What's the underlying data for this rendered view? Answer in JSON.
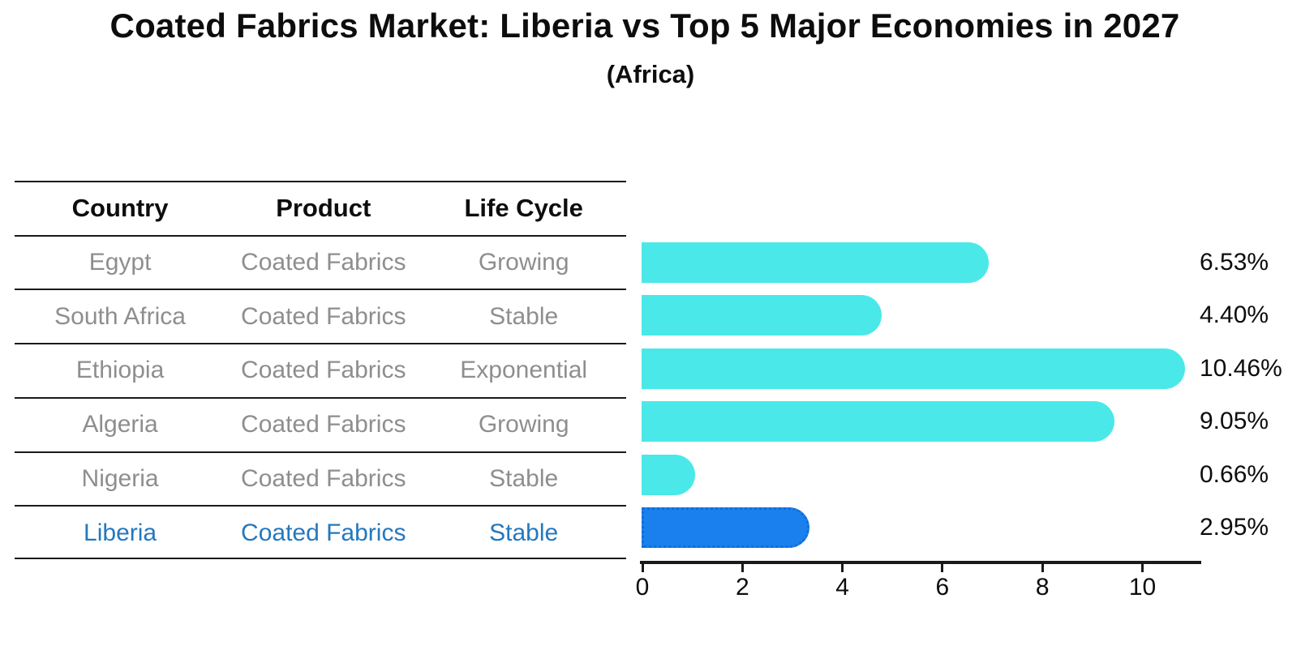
{
  "title": "Coated Fabrics Market: Liberia vs Top 5 Major Economies in 2027",
  "subtitle": "(Africa)",
  "table": {
    "headers": [
      "Country",
      "Product",
      "Life Cycle"
    ],
    "rows": [
      {
        "country": "Egypt",
        "product": "Coated Fabrics",
        "life_cycle": "Growing",
        "highlight": false
      },
      {
        "country": "South Africa",
        "product": "Coated Fabrics",
        "life_cycle": "Stable",
        "highlight": false
      },
      {
        "country": "Ethiopia",
        "product": "Coated Fabrics",
        "life_cycle": "Exponential",
        "highlight": false
      },
      {
        "country": "Algeria",
        "product": "Coated Fabrics",
        "life_cycle": "Growing",
        "highlight": false
      },
      {
        "country": "Nigeria",
        "product": "Coated Fabrics",
        "life_cycle": "Stable",
        "highlight": false
      },
      {
        "country": "Liberia",
        "product": "Coated Fabrics",
        "life_cycle": "Stable",
        "highlight": true
      }
    ]
  },
  "chart_data": {
    "type": "bar",
    "orientation": "horizontal",
    "categories": [
      "Egypt",
      "South Africa",
      "Ethiopia",
      "Algeria",
      "Nigeria",
      "Liberia"
    ],
    "values": [
      6.53,
      4.4,
      10.46,
      9.05,
      0.66,
      2.95
    ],
    "value_labels": [
      "6.53%",
      "4.40%",
      "10.46%",
      "9.05%",
      "0.66%",
      "2.95%"
    ],
    "highlight_index": 5,
    "xticks": [
      0,
      2,
      4,
      6,
      8,
      10
    ],
    "xlim": [
      0,
      11.1
    ],
    "grid": false,
    "legend": "none",
    "bar_color": "#4ae8e8",
    "highlight_bar_color": "#1a80ee",
    "title": "Coated Fabrics Market: Liberia vs Top 5 Major Economies in 2027",
    "subtitle": "(Africa)",
    "xlabel": "",
    "ylabel": ""
  },
  "colors": {
    "background": "#ffffff",
    "table_line": "#1a1a1a",
    "row_text": "#8e8e90",
    "header_text": "#0d0d0d",
    "highlight_text": "#2478be",
    "axis": "#1a1a1a",
    "bar": "#4ae8e8",
    "highlight_bar": "#1a80ee"
  }
}
